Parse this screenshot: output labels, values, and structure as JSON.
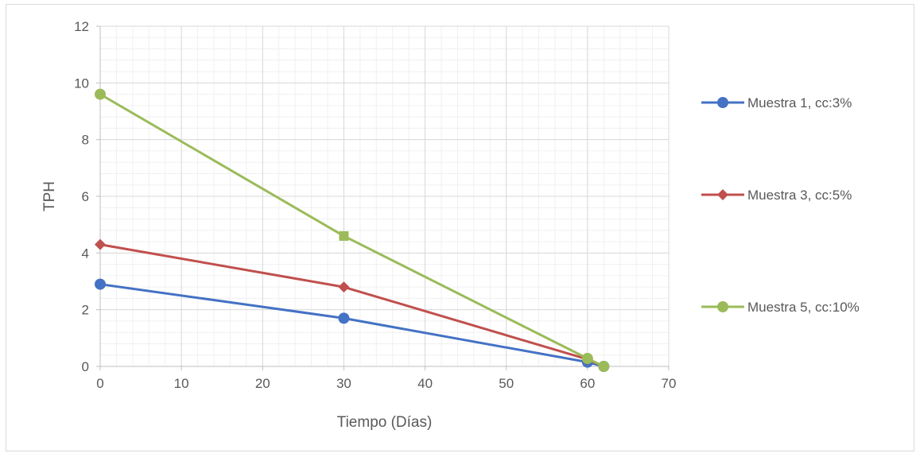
{
  "chart_data": {
    "type": "line",
    "xlabel": "Tiempo (Días)",
    "ylabel": "TPH",
    "xlim": [
      0,
      70
    ],
    "ylim": [
      0,
      12
    ],
    "xticks": [
      0,
      10,
      20,
      30,
      40,
      50,
      60,
      70
    ],
    "yticks": [
      0,
      2,
      4,
      6,
      8,
      10,
      12
    ],
    "grid": true,
    "minor_grid": true,
    "legend_position": "right",
    "series": [
      {
        "name": "Muestra 1, cc:3%",
        "color": "#4472c4",
        "marker": "circle",
        "x": [
          0,
          30,
          60,
          62
        ],
        "y": [
          2.9,
          1.7,
          0.15,
          0.0
        ]
      },
      {
        "name": "Muestra 3, cc:5%",
        "color": "#c0504d",
        "marker": "diamond",
        "x": [
          0,
          30,
          60,
          62
        ],
        "y": [
          4.3,
          2.8,
          0.25,
          0.0
        ]
      },
      {
        "name": "Muestra 5, cc:10%",
        "color": "#9bbb59",
        "marker": "circle",
        "x": [
          0,
          30,
          60,
          62
        ],
        "y": [
          9.6,
          4.6,
          0.28,
          0.0
        ]
      }
    ]
  }
}
